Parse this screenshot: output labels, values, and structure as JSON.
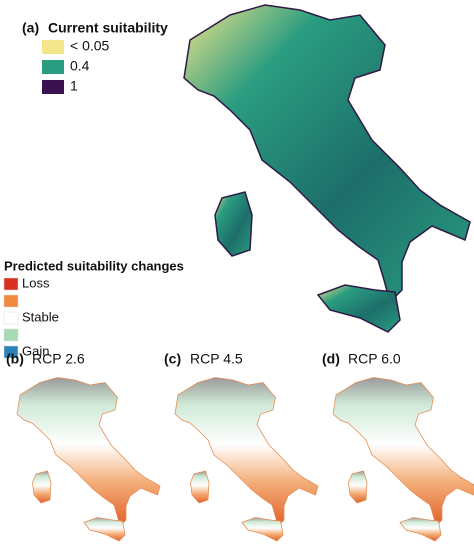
{
  "panel_a": {
    "letter": "(a)",
    "title": "Current suitability",
    "legend": [
      {
        "label": "< 0.05",
        "color": "#f3e58a"
      },
      {
        "label": "0.4",
        "color": "#2a9d80"
      },
      {
        "label": "1",
        "color": "#3b1250"
      }
    ]
  },
  "change_legend": {
    "title": "Predicted suitability changes",
    "items": [
      {
        "label": "Loss",
        "color": "#d7301f"
      },
      {
        "color": "#f0883e"
      },
      {
        "label": "Stable",
        "color": "#ffffff"
      },
      {
        "color": "#a8dbb4"
      },
      {
        "label": "Gain",
        "color": "#2b83ba"
      }
    ]
  },
  "panels": [
    {
      "letter": "(b)",
      "title": "RCP 2.6"
    },
    {
      "letter": "(c)",
      "title": "RCP 4.5"
    },
    {
      "letter": "(d)",
      "title": "RCP 6.0"
    }
  ]
}
